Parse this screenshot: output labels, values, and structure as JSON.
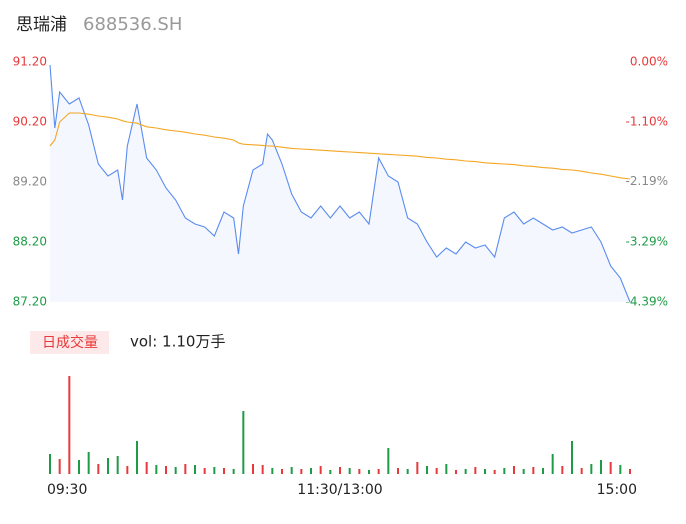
{
  "chart_data": [
    {
      "type": "line",
      "title": "思瑞浦",
      "subtitle": "688536.SH",
      "xlim": [
        0,
        240
      ],
      "x": [
        0,
        2,
        4,
        8,
        12,
        16,
        20,
        24,
        28,
        30,
        32,
        36,
        40,
        44,
        48,
        52,
        56,
        60,
        64,
        68,
        72,
        76,
        78,
        80,
        84,
        88,
        90,
        92,
        96,
        100,
        104,
        108,
        112,
        116,
        120,
        124,
        128,
        132,
        136,
        140,
        144,
        148,
        152,
        156,
        160,
        164,
        168,
        172,
        176,
        180,
        184,
        188,
        192,
        196,
        200,
        204,
        208,
        212,
        216,
        220,
        224,
        228,
        232,
        236,
        240
      ],
      "series": [
        {
          "color": "#5a8cf0",
          "values": [
            91.15,
            90.1,
            90.7,
            90.5,
            90.6,
            90.15,
            89.5,
            89.3,
            89.4,
            88.9,
            89.8,
            90.5,
            89.6,
            89.4,
            89.1,
            88.9,
            88.6,
            88.5,
            88.45,
            88.3,
            88.7,
            88.6,
            88.0,
            88.8,
            89.4,
            89.5,
            90.0,
            89.9,
            89.5,
            89.0,
            88.7,
            88.6,
            88.8,
            88.6,
            88.8,
            88.6,
            88.7,
            88.5,
            89.6,
            89.3,
            89.2,
            88.6,
            88.5,
            88.2,
            87.95,
            88.1,
            88.0,
            88.2,
            88.1,
            88.15,
            87.95,
            88.6,
            88.7,
            88.5,
            88.6,
            88.5,
            88.4,
            88.45,
            88.35,
            88.4,
            88.45,
            88.2,
            87.8,
            87.6,
            87.2
          ]
        },
        {
          "color": "#f5a623",
          "values": [
            89.8,
            89.9,
            90.2,
            90.35,
            90.35,
            90.33,
            90.3,
            90.28,
            90.25,
            90.22,
            90.2,
            90.18,
            90.12,
            90.1,
            90.07,
            90.05,
            90.03,
            90.0,
            89.98,
            89.95,
            89.93,
            89.9,
            89.85,
            89.83,
            89.82,
            89.81,
            89.8,
            89.8,
            89.78,
            89.76,
            89.75,
            89.74,
            89.73,
            89.72,
            89.71,
            89.7,
            89.69,
            89.68,
            89.67,
            89.66,
            89.65,
            89.64,
            89.63,
            89.61,
            89.6,
            89.58,
            89.57,
            89.55,
            89.54,
            89.52,
            89.51,
            89.5,
            89.49,
            89.47,
            89.46,
            89.44,
            89.43,
            89.41,
            89.4,
            89.38,
            89.35,
            89.33,
            89.3,
            89.27,
            89.25
          ]
        }
      ],
      "area_fill": "#f4f7fd",
      "ylim": [
        87.2,
        91.2
      ],
      "yticks": [
        {
          "value": 91.2,
          "label": "91.20"
        },
        {
          "value": 90.2,
          "label": "90.20"
        },
        {
          "value": 89.2,
          "label": "89.20"
        },
        {
          "value": 88.2,
          "label": "88.20"
        },
        {
          "value": 87.2,
          "label": "87.20"
        }
      ],
      "ytick_colors": [
        "#e8393a",
        "#e8393a",
        "#888888",
        "#1e9b47",
        "#1e9b47"
      ],
      "y2lim": [
        -4.39,
        0
      ],
      "y2ticks": [
        {
          "value": 0,
          "label": "0.00%"
        },
        {
          "value": -1.1,
          "label": "-1.10%"
        },
        {
          "value": -2.19,
          "label": "-2.19%"
        },
        {
          "value": -3.29,
          "label": "-3.29%"
        },
        {
          "value": -4.39,
          "label": "-4.39%"
        }
      ],
      "y2tick_colors": [
        "#e8393a",
        "#e8393a",
        "#888888",
        "#1e9b47",
        "#1e9b47"
      ]
    },
    {
      "type": "bar",
      "title": "日成交量",
      "annotation": "vol: 1.10万手",
      "xlim": [
        0,
        240
      ],
      "xticks": [
        {
          "value": 0,
          "label": "09:30"
        },
        {
          "value": 120,
          "label": "11:30/13:00"
        },
        {
          "value": 240,
          "label": "15:00"
        }
      ],
      "x": [
        0,
        4,
        8,
        12,
        16,
        20,
        24,
        28,
        32,
        36,
        40,
        44,
        48,
        52,
        56,
        60,
        64,
        68,
        72,
        76,
        80,
        84,
        88,
        92,
        96,
        100,
        104,
        108,
        112,
        116,
        120,
        124,
        128,
        132,
        136,
        140,
        144,
        148,
        152,
        156,
        160,
        164,
        168,
        172,
        176,
        180,
        184,
        188,
        192,
        196,
        200,
        204,
        208,
        212,
        216,
        220,
        224,
        228,
        232,
        236,
        240
      ],
      "values": [
        20,
        15,
        98,
        14,
        22,
        10,
        16,
        18,
        8,
        33,
        12,
        9,
        8,
        7,
        10,
        9,
        6,
        7,
        6,
        5,
        63,
        10,
        9,
        6,
        5,
        7,
        5,
        6,
        8,
        4,
        7,
        6,
        5,
        4,
        5,
        26,
        6,
        5,
        12,
        8,
        6,
        10,
        4,
        5,
        7,
        5,
        4,
        6,
        8,
        5,
        7,
        6,
        20,
        8,
        33,
        6,
        10,
        14,
        12,
        9,
        5
      ],
      "colors": [
        "#1e9b47",
        "#e8393a",
        "#e8393a",
        "#1e9b47",
        "#1e9b47",
        "#e8393a",
        "#1e9b47",
        "#1e9b47",
        "#e8393a",
        "#1e9b47",
        "#e8393a",
        "#1e9b47",
        "#e8393a",
        "#1e9b47",
        "#e8393a",
        "#1e9b47",
        "#e8393a",
        "#1e9b47",
        "#e8393a",
        "#1e9b47",
        "#1e9b47",
        "#e8393a",
        "#e8393a",
        "#1e9b47",
        "#e8393a",
        "#1e9b47",
        "#e8393a",
        "#1e9b47",
        "#e8393a",
        "#1e9b47",
        "#e8393a",
        "#1e9b47",
        "#e8393a",
        "#1e9b47",
        "#e8393a",
        "#1e9b47",
        "#e8393a",
        "#1e9b47",
        "#e8393a",
        "#1e9b47",
        "#e8393a",
        "#1e9b47",
        "#e8393a",
        "#1e9b47",
        "#e8393a",
        "#1e9b47",
        "#e8393a",
        "#1e9b47",
        "#e8393a",
        "#1e9b47",
        "#e8393a",
        "#1e9b47",
        "#1e9b47",
        "#e8393a",
        "#1e9b47",
        "#e8393a",
        "#1e9b47",
        "#1e9b47",
        "#e8393a",
        "#1e9b47",
        "#e8393a"
      ],
      "ylim": [
        0,
        100
      ]
    }
  ]
}
